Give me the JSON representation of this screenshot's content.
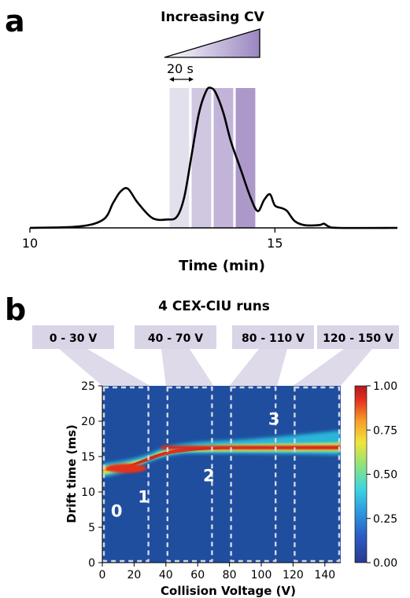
{
  "panel_a": {
    "letter": "a",
    "title": "Increasing CV",
    "interval_label": "20 s",
    "xlabel": "Time (min)",
    "x_ticks": [
      10,
      15
    ]
  },
  "panel_b": {
    "letter": "b",
    "title": "4 CEX-CIU runs",
    "run_labels": [
      "0 - 30 V",
      "40 - 70 V",
      "80 - 110 V",
      "120 - 150 V"
    ],
    "state_labels": [
      "0",
      "1",
      "2",
      "3"
    ],
    "xlabel": "Collision Voltage (V)",
    "ylabel": "Drift time (ms)",
    "colorbar_ticks": [
      "1.00",
      "0.75",
      "0.50",
      "0.25",
      "0.00"
    ]
  },
  "colors": {
    "band1": "#e3e0ee",
    "band2": "#d0c7e1",
    "band3": "#c2b4d9",
    "band4": "#ad98ca",
    "label_box": "#d9d4e6",
    "heat_bg": "#1f4e9f",
    "dash": "#d6d8e4"
  },
  "chart_data": [
    {
      "type": "line",
      "title": "",
      "xlabel": "Time (min)",
      "ylabel": "",
      "xlim": [
        10,
        17.5
      ],
      "x": [
        10.0,
        11.0,
        11.5,
        11.7,
        11.85,
        12.0,
        12.2,
        12.5,
        12.8,
        13.0,
        13.15,
        13.3,
        13.45,
        13.6,
        13.7,
        13.8,
        13.95,
        14.1,
        14.3,
        14.5,
        14.65,
        14.78,
        14.9,
        15.0,
        15.15,
        15.25,
        15.4,
        15.6,
        15.9,
        16.0,
        16.1,
        16.3,
        17.5
      ],
      "y": [
        0.0,
        0.01,
        0.06,
        0.18,
        0.26,
        0.28,
        0.18,
        0.07,
        0.06,
        0.08,
        0.22,
        0.52,
        0.82,
        0.98,
        1.0,
        0.96,
        0.82,
        0.62,
        0.42,
        0.22,
        0.12,
        0.2,
        0.24,
        0.16,
        0.14,
        0.12,
        0.05,
        0.02,
        0.02,
        0.03,
        0.01,
        0.0,
        0.0
      ],
      "bands": [
        {
          "start": 12.85,
          "end": 13.25
        },
        {
          "start": 13.3,
          "end": 13.7
        },
        {
          "start": 13.75,
          "end": 14.15
        },
        {
          "start": 14.2,
          "end": 14.6
        }
      ]
    },
    {
      "type": "heatmap",
      "title": "4 CEX-CIU runs",
      "xlabel": "Collision Voltage (V)",
      "ylabel": "Drift time (ms)",
      "xlim": [
        0,
        150
      ],
      "ylim": [
        0,
        25
      ],
      "x_ticks": [
        0,
        20,
        40,
        60,
        80,
        100,
        120,
        140
      ],
      "y_ticks": [
        0,
        5,
        10,
        15,
        20,
        25
      ],
      "colorbar_range": [
        0.0,
        1.0
      ],
      "features": [
        {
          "name": "0",
          "voltage_range": [
            0,
            30
          ],
          "drift_time": 12.3
        },
        {
          "name": "1",
          "voltage_range": [
            25,
            40
          ],
          "drift_time": 14.0
        },
        {
          "name": "2",
          "voltage_range": [
            35,
            150
          ],
          "drift_time": 16.5
        },
        {
          "name": "3",
          "voltage_range": [
            100,
            150
          ],
          "drift_time": 17.6
        }
      ],
      "run_windows": [
        [
          0,
          30
        ],
        [
          40,
          70
        ],
        [
          80,
          110
        ],
        [
          120,
          150
        ]
      ],
      "state_labels": [
        "0",
        "1",
        "2",
        "3"
      ]
    }
  ]
}
